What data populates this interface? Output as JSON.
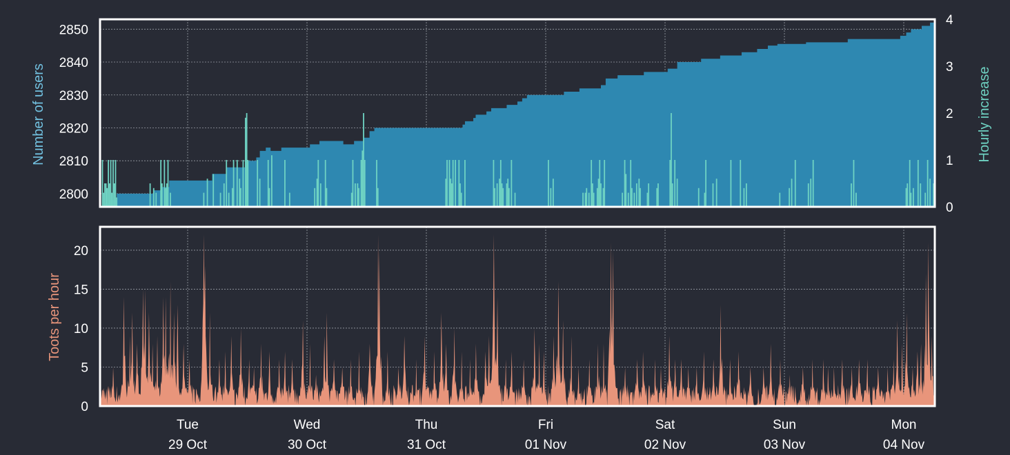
{
  "colors": {
    "background": "#282b35",
    "users_fill": "#2e88b1",
    "hourly_fill": "#6fd3c3",
    "toots_fill": "#e8957b",
    "frame": "#ffffff",
    "grid": "#9aa0a8"
  },
  "chart_data": [
    {
      "type": "area",
      "ylabel": "Number of users",
      "y2label": "Hourly increase",
      "ylim": [
        2796,
        2853
      ],
      "y2lim": [
        0,
        4
      ],
      "yticks": [
        2800,
        2810,
        2820,
        2830,
        2840,
        2850
      ],
      "y2ticks": [
        0,
        1,
        2,
        3,
        4
      ],
      "grid": true,
      "users_steps": [
        [
          0.0,
          2796
        ],
        [
          4,
          2797
        ],
        [
          8,
          2798
        ],
        [
          14,
          2800
        ],
        [
          45,
          2801
        ],
        [
          52,
          2802
        ],
        [
          58,
          2804
        ],
        [
          94,
          2806
        ],
        [
          106,
          2808
        ],
        [
          122,
          2810
        ],
        [
          131,
          2811
        ],
        [
          134,
          2813
        ],
        [
          139,
          2814
        ],
        [
          143,
          2813
        ],
        [
          152,
          2814
        ],
        [
          176,
          2815
        ],
        [
          184,
          2816
        ],
        [
          204,
          2815
        ],
        [
          213,
          2816
        ],
        [
          221,
          2817
        ],
        [
          226,
          2819
        ],
        [
          230,
          2820
        ],
        [
          262,
          2820
        ],
        [
          300,
          2820
        ],
        [
          304,
          2821
        ],
        [
          306,
          2822
        ],
        [
          313,
          2823
        ],
        [
          315,
          2824
        ],
        [
          324,
          2825
        ],
        [
          328,
          2826
        ],
        [
          341,
          2827
        ],
        [
          350,
          2828
        ],
        [
          354,
          2829
        ],
        [
          358,
          2830
        ],
        [
          384,
          2830
        ],
        [
          389,
          2831
        ],
        [
          402,
          2832
        ],
        [
          420,
          2833
        ],
        [
          424,
          2835
        ],
        [
          434,
          2836
        ],
        [
          456,
          2837
        ],
        [
          476,
          2838
        ],
        [
          484,
          2840
        ],
        [
          502,
          2840
        ],
        [
          504,
          2841
        ],
        [
          520,
          2842
        ],
        [
          538,
          2843
        ],
        [
          551,
          2844
        ],
        [
          560,
          2845
        ],
        [
          568,
          2845.5
        ],
        [
          592,
          2846
        ],
        [
          625,
          2846
        ],
        [
          627,
          2847
        ],
        [
          668,
          2847
        ],
        [
          671,
          2848
        ],
        [
          676,
          2849
        ],
        [
          680,
          2850
        ],
        [
          689,
          2851
        ],
        [
          696,
          2852
        ],
        [
          700,
          2853
        ]
      ],
      "hourly_spikes": [
        [
          2,
          1
        ],
        [
          3,
          0.3
        ],
        [
          4,
          0.5
        ],
        [
          5,
          0.5
        ],
        [
          6,
          0.4
        ],
        [
          7,
          1
        ],
        [
          8,
          0.5
        ],
        [
          9,
          1
        ],
        [
          10,
          0.3
        ],
        [
          11,
          1
        ],
        [
          12,
          0.5
        ],
        [
          13,
          1
        ],
        [
          14,
          0.2
        ],
        [
          42,
          0.5
        ],
        [
          45,
          0.4
        ],
        [
          47,
          0.3
        ],
        [
          51,
          1
        ],
        [
          52,
          0.5
        ],
        [
          54,
          1
        ],
        [
          55,
          0.4
        ],
        [
          56,
          0.5
        ],
        [
          57,
          1
        ],
        [
          59,
          0.3
        ],
        [
          87,
          0.3
        ],
        [
          90,
          0.6
        ],
        [
          95,
          0.7
        ],
        [
          101,
          0.3
        ],
        [
          104,
          0.5
        ],
        [
          106,
          1
        ],
        [
          108,
          0.3
        ],
        [
          111,
          0.4
        ],
        [
          112,
          1
        ],
        [
          115,
          1
        ],
        [
          117,
          0.6
        ],
        [
          118,
          0.4
        ],
        [
          120,
          1
        ],
        [
          122,
          1.9
        ],
        [
          123,
          2
        ],
        [
          124,
          1
        ],
        [
          132,
          1
        ],
        [
          134,
          0.6
        ],
        [
          141,
          1
        ],
        [
          142,
          0.4
        ],
        [
          144,
          1.1
        ],
        [
          155,
          1
        ],
        [
          159,
          0.3
        ],
        [
          180,
          0.4
        ],
        [
          182,
          0.6
        ],
        [
          183,
          1
        ],
        [
          185,
          0.5
        ],
        [
          189,
          1
        ],
        [
          190,
          0.4
        ],
        [
          211,
          0.3
        ],
        [
          212,
          1
        ],
        [
          214,
          0.5
        ],
        [
          216,
          0.5
        ],
        [
          217,
          0.4
        ],
        [
          219,
          1
        ],
        [
          220,
          1.2
        ],
        [
          221,
          2
        ],
        [
          222,
          1
        ],
        [
          232,
          1
        ],
        [
          233,
          0.4
        ],
        [
          290,
          0.6
        ],
        [
          291,
          1
        ],
        [
          293,
          1
        ],
        [
          294,
          0.6
        ],
        [
          295,
          0.5
        ],
        [
          296,
          1
        ],
        [
          298,
          1
        ],
        [
          301,
          1
        ],
        [
          302,
          0.5
        ],
        [
          303,
          0.3
        ],
        [
          306,
          1
        ],
        [
          330,
          1
        ],
        [
          331,
          0.4
        ],
        [
          333,
          0.5
        ],
        [
          335,
          0.6
        ],
        [
          336,
          1
        ],
        [
          337,
          0.5
        ],
        [
          338,
          0.4
        ],
        [
          341,
          0.5
        ],
        [
          342,
          0.6
        ],
        [
          343,
          0.4
        ],
        [
          345,
          1
        ],
        [
          348,
          0.3
        ],
        [
          376,
          1
        ],
        [
          378,
          0.4
        ],
        [
          380,
          0.6
        ],
        [
          405,
          0.3
        ],
        [
          407,
          0.3
        ],
        [
          408,
          0.4
        ],
        [
          410,
          0.3
        ],
        [
          412,
          1
        ],
        [
          413,
          0.5
        ],
        [
          414,
          0.3
        ],
        [
          417,
          0.4
        ],
        [
          418,
          0.6
        ],
        [
          419,
          1
        ],
        [
          420,
          0.5
        ],
        [
          422,
          0.4
        ],
        [
          423,
          1
        ],
        [
          438,
          0.3
        ],
        [
          440,
          1
        ],
        [
          441,
          0.7
        ],
        [
          443,
          0.3
        ],
        [
          445,
          1
        ],
        [
          446,
          0.4
        ],
        [
          448,
          0.3
        ],
        [
          450,
          0.5
        ],
        [
          452,
          0.6
        ],
        [
          453,
          0.4
        ],
        [
          459,
          0.3
        ],
        [
          460,
          0.5
        ],
        [
          467,
          0.4
        ],
        [
          468,
          0.5
        ],
        [
          478,
          1
        ],
        [
          479,
          2
        ],
        [
          480,
          0.5
        ],
        [
          482,
          1
        ],
        [
          484,
          0.6
        ],
        [
          502,
          0.4
        ],
        [
          507,
          0.3
        ],
        [
          508,
          1
        ],
        [
          514,
          0.5
        ],
        [
          517,
          0.6
        ],
        [
          529,
          1
        ],
        [
          537,
          1
        ],
        [
          540,
          0.4
        ],
        [
          542,
          0.5
        ],
        [
          570,
          0.3
        ],
        [
          578,
          0.4
        ],
        [
          580,
          0.6
        ],
        [
          583,
          1
        ],
        [
          594,
          0.5
        ],
        [
          596,
          0.6
        ],
        [
          598,
          1
        ],
        [
          630,
          0.5
        ],
        [
          632,
          1
        ],
        [
          634,
          0.3
        ],
        [
          676,
          0.4
        ],
        [
          677,
          0.5
        ],
        [
          679,
          1
        ],
        [
          680,
          0.3
        ],
        [
          682,
          0.4
        ],
        [
          686,
          1
        ],
        [
          688,
          0.5
        ],
        [
          692,
          0.3
        ],
        [
          694,
          1
        ],
        [
          696,
          0.6
        ],
        [
          699,
          0.5
        ],
        [
          700,
          1
        ]
      ]
    },
    {
      "type": "bar",
      "ylabel": "Toots per hour",
      "ylim": [
        0,
        23
      ],
      "yticks": [
        0,
        5,
        10,
        15,
        20
      ],
      "grid": true,
      "x_ticks": [
        {
          "day": "Tue",
          "date": "29 Oct"
        },
        {
          "day": "Wed",
          "date": "30 Oct"
        },
        {
          "day": "Thu",
          "date": "31 Oct"
        },
        {
          "day": "Fri",
          "date": "01 Nov"
        },
        {
          "day": "Sat",
          "date": "02 Nov"
        },
        {
          "day": "Sun",
          "date": "03 Nov"
        },
        {
          "day": "Mon",
          "date": "04 Nov"
        }
      ],
      "toots_peaks": [
        [
          4,
          2
        ],
        [
          11,
          5
        ],
        [
          20,
          14
        ],
        [
          25,
          9
        ],
        [
          27,
          12
        ],
        [
          31,
          8
        ],
        [
          36,
          15
        ],
        [
          38,
          15
        ],
        [
          41,
          12
        ],
        [
          44,
          8
        ],
        [
          48,
          9
        ],
        [
          53,
          14
        ],
        [
          55,
          14
        ],
        [
          59,
          16
        ],
        [
          62,
          12
        ],
        [
          65,
          13
        ],
        [
          70,
          8
        ],
        [
          75,
          6
        ],
        [
          87,
          22
        ],
        [
          88,
          18
        ],
        [
          92,
          12
        ],
        [
          100,
          6
        ],
        [
          105,
          7
        ],
        [
          110,
          9
        ],
        [
          118,
          10
        ],
        [
          125,
          6
        ],
        [
          129,
          5
        ],
        [
          135,
          8
        ],
        [
          142,
          7
        ],
        [
          150,
          6
        ],
        [
          155,
          7
        ],
        [
          161,
          6
        ],
        [
          170,
          11
        ],
        [
          176,
          8
        ],
        [
          181,
          4
        ],
        [
          188,
          9
        ],
        [
          190,
          12
        ],
        [
          196,
          6
        ],
        [
          203,
          5
        ],
        [
          210,
          6
        ],
        [
          217,
          7
        ],
        [
          226,
          8
        ],
        [
          233,
          22
        ],
        [
          234,
          20
        ],
        [
          241,
          7
        ],
        [
          250,
          5
        ],
        [
          255,
          9
        ],
        [
          265,
          6
        ],
        [
          272,
          9
        ],
        [
          280,
          7
        ],
        [
          286,
          12
        ],
        [
          290,
          8
        ],
        [
          297,
          10
        ],
        [
          303,
          7
        ],
        [
          310,
          6
        ],
        [
          315,
          8
        ],
        [
          323,
          7
        ],
        [
          326,
          9
        ],
        [
          330,
          22
        ],
        [
          333,
          14
        ],
        [
          340,
          6
        ],
        [
          345,
          7
        ],
        [
          355,
          6
        ],
        [
          364,
          10
        ],
        [
          368,
          8
        ],
        [
          372,
          7
        ],
        [
          380,
          9
        ],
        [
          384,
          16
        ],
        [
          388,
          11
        ],
        [
          395,
          9
        ],
        [
          401,
          5
        ],
        [
          410,
          6
        ],
        [
          417,
          8
        ],
        [
          422,
          8
        ],
        [
          428,
          21
        ],
        [
          430,
          20
        ],
        [
          440,
          5
        ],
        [
          450,
          6
        ],
        [
          455,
          7
        ],
        [
          465,
          6
        ],
        [
          470,
          5
        ],
        [
          477,
          9
        ],
        [
          482,
          6
        ],
        [
          487,
          6
        ],
        [
          493,
          5
        ],
        [
          500,
          5
        ],
        [
          506,
          7
        ],
        [
          514,
          6
        ],
        [
          520,
          13
        ],
        [
          528,
          6
        ],
        [
          535,
          7
        ],
        [
          545,
          5
        ],
        [
          556,
          5
        ],
        [
          562,
          8
        ],
        [
          570,
          6
        ],
        [
          578,
          4
        ],
        [
          589,
          5
        ],
        [
          597,
          6
        ],
        [
          606,
          6
        ],
        [
          610,
          5
        ],
        [
          615,
          5
        ],
        [
          622,
          6
        ],
        [
          630,
          5
        ],
        [
          636,
          6
        ],
        [
          643,
          6
        ],
        [
          652,
          5
        ],
        [
          660,
          5
        ],
        [
          665,
          6
        ],
        [
          668,
          11
        ],
        [
          672,
          8
        ],
        [
          676,
          12
        ],
        [
          681,
          5
        ],
        [
          685,
          7
        ],
        [
          688,
          8
        ],
        [
          692,
          17
        ],
        [
          694,
          21
        ],
        [
          697,
          9
        ],
        [
          700,
          4
        ]
      ]
    }
  ]
}
